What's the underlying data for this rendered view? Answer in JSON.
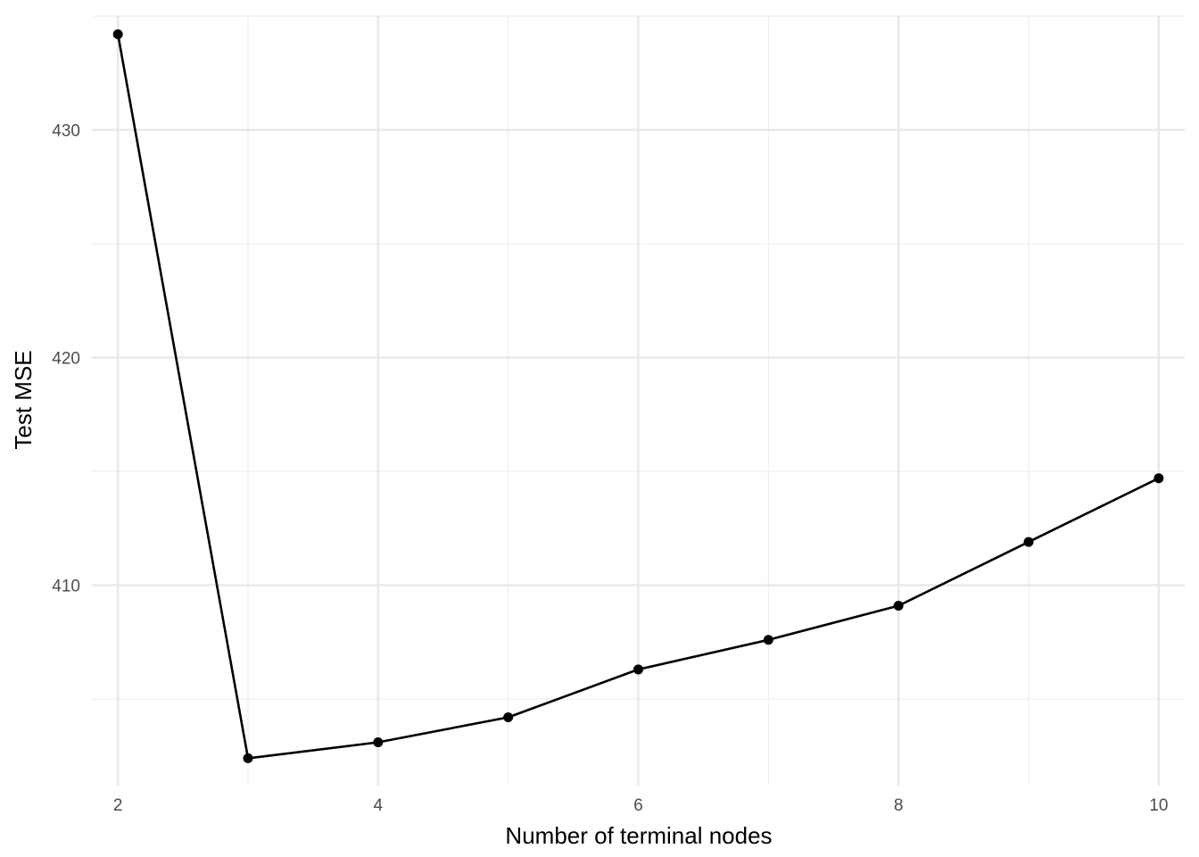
{
  "chart_data": {
    "type": "line",
    "title": "",
    "xlabel": "Number of terminal nodes",
    "ylabel": "Test MSE",
    "x": [
      2,
      3,
      4,
      5,
      6,
      7,
      8,
      9,
      10
    ],
    "series": [
      {
        "values": [
          434.2,
          402.4,
          403.1,
          404.2,
          406.3,
          407.6,
          409.1,
          411.9,
          414.7
        ]
      }
    ],
    "x_ticks": [
      "2",
      "4",
      "6",
      "8",
      "10"
    ],
    "y_ticks": [
      "410",
      "420",
      "430"
    ],
    "xlim": [
      1.8,
      10.2
    ],
    "ylim": [
      401.2,
      435.0
    ],
    "grid": true,
    "legend": "none",
    "colors": {
      "line": "#000000",
      "point": "#000000",
      "grid": "#ebebeb"
    }
  }
}
